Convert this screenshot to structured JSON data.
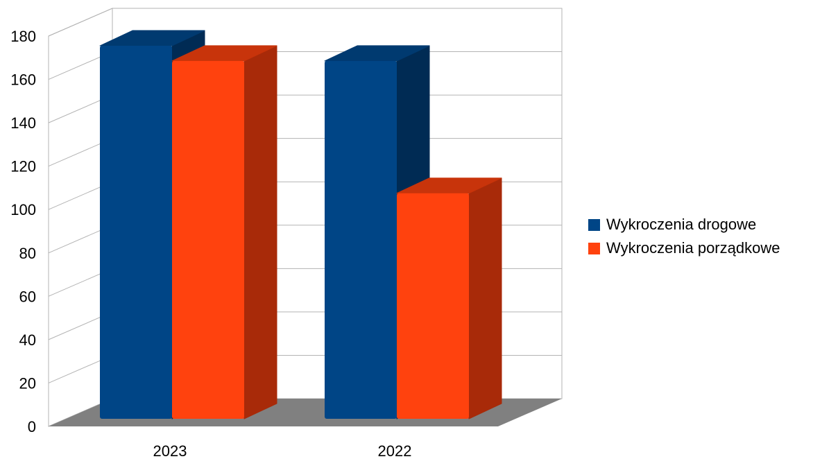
{
  "chart_data": {
    "type": "bar",
    "categories": [
      "2023",
      "2022"
    ],
    "series": [
      {
        "name": "Wykroczenia drogowe",
        "values": [
          172,
          165
        ],
        "color": "#004586",
        "side_color": "#002b54",
        "top_color": "#003a70"
      },
      {
        "name": "Wykroczenia porządkowe",
        "values": [
          165,
          104
        ],
        "color": "#ff420e",
        "side_color": "#a82a09",
        "top_color": "#c8340b"
      }
    ],
    "y_ticks": [
      "0",
      "20",
      "40",
      "60",
      "80",
      "100",
      "120",
      "140",
      "160",
      "180"
    ],
    "ylim": [
      0,
      180
    ],
    "grid": true,
    "legend_position": "right",
    "floor_color": "#808080"
  }
}
